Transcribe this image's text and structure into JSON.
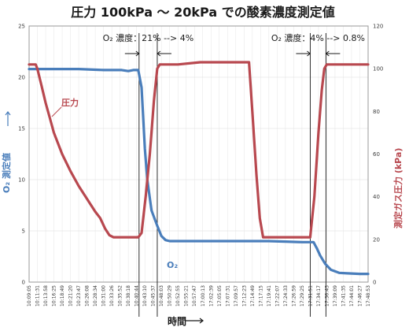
{
  "chart_data": {
    "type": "line",
    "title": "圧力 100kPa ～ 20kPa での酸素濃度測定値",
    "xlabel": "時間",
    "ylabel_left": "O₂ 測定値",
    "ylabel_right": "測定ガス圧力 (kPa)",
    "y_left_lim": [
      0,
      25
    ],
    "y_left_ticks": [
      "0",
      "5",
      "10",
      "15",
      "20",
      "25"
    ],
    "y_right_lim": [
      0,
      120
    ],
    "y_right_ticks": [
      "0",
      "20",
      "40",
      "60",
      "80",
      "100",
      "120"
    ],
    "grid": true,
    "x_ticks": [
      "10:09:05",
      "10:11:31",
      "10:13:58",
      "10:16:25",
      "10:18:49",
      "10:21:20",
      "10:23:47",
      "10:26:08",
      "10:28:34",
      "10:31:00",
      "10:33:26",
      "10:35:52",
      "10:38:18",
      "10:40:44",
      "10:43:10",
      "10:45:37",
      "10:48:03",
      "10:50:29",
      "10:52:55",
      "10:55:21",
      "10:57:47",
      "17:00:13",
      "17:02:39",
      "17:05:05",
      "17:07:31",
      "17:09:57",
      "17:12:23",
      "17:14:49",
      "17:17:15",
      "17:19:41",
      "17:22:07",
      "17:24:33",
      "17:26:59",
      "17:29:25",
      "17:31:51",
      "17:34:17",
      "17:36:43",
      "17:39:09",
      "17:41:35",
      "17:44:01",
      "17:46:27",
      "17:48:53"
    ],
    "series": [
      {
        "name": "O₂",
        "axis": "left",
        "color": "#4a7ebb",
        "points": [
          [
            0,
            20.8
          ],
          [
            3,
            20.8
          ],
          [
            6,
            20.8
          ],
          [
            9,
            20.7
          ],
          [
            10,
            20.7
          ],
          [
            11.2,
            20.7
          ],
          [
            12,
            20.6
          ],
          [
            12.6,
            20.7
          ],
          [
            13.2,
            20.7
          ],
          [
            13.6,
            19.0
          ],
          [
            14.0,
            13.0
          ],
          [
            14.3,
            10.0
          ],
          [
            14.8,
            7.0
          ],
          [
            15.5,
            5.5
          ],
          [
            16.0,
            4.5
          ],
          [
            16.5,
            4.1
          ],
          [
            17.0,
            4.0
          ],
          [
            20,
            4.0
          ],
          [
            25,
            4.0
          ],
          [
            29,
            4.0
          ],
          [
            31,
            3.95
          ],
          [
            33,
            3.9
          ],
          [
            34.4,
            3.9
          ],
          [
            34.8,
            3.3
          ],
          [
            35.2,
            2.6
          ],
          [
            35.8,
            1.8
          ],
          [
            36.5,
            1.2
          ],
          [
            37.5,
            0.9
          ],
          [
            38.5,
            0.85
          ],
          [
            40,
            0.8
          ],
          [
            41,
            0.8
          ]
        ]
      },
      {
        "name": "圧力",
        "axis": "right",
        "color": "#b8484f",
        "points": [
          [
            0,
            102
          ],
          [
            0.8,
            102
          ],
          [
            1.0,
            100
          ],
          [
            1.5,
            92
          ],
          [
            2,
            84
          ],
          [
            2.5,
            77
          ],
          [
            3,
            70
          ],
          [
            4,
            60
          ],
          [
            5,
            52
          ],
          [
            6,
            45
          ],
          [
            7,
            39
          ],
          [
            8,
            33
          ],
          [
            8.6,
            30
          ],
          [
            9.2,
            25
          ],
          [
            9.7,
            22
          ],
          [
            10.2,
            21
          ],
          [
            12,
            21
          ],
          [
            13.2,
            21
          ],
          [
            13.6,
            23
          ],
          [
            14.1,
            40
          ],
          [
            14.6,
            60
          ],
          [
            15.1,
            85
          ],
          [
            15.5,
            100
          ],
          [
            15.8,
            102
          ],
          [
            18,
            102
          ],
          [
            20.7,
            103
          ],
          [
            22,
            103
          ],
          [
            26.6,
            103
          ],
          [
            27.0,
            80
          ],
          [
            27.5,
            50
          ],
          [
            27.9,
            30
          ],
          [
            28.3,
            21
          ],
          [
            33,
            21
          ],
          [
            34.0,
            21
          ],
          [
            34.5,
            40
          ],
          [
            35.0,
            70
          ],
          [
            35.4,
            90
          ],
          [
            35.7,
            100
          ],
          [
            36.0,
            102
          ],
          [
            41,
            102
          ]
        ]
      }
    ],
    "annotations": [
      {
        "text": "O₂ 濃度：21% --> 4%",
        "x_from": 13.3,
        "x_to": 15.5
      },
      {
        "text": "O₂ 濃度：4% --> 0.8%",
        "x_from": 34.0,
        "x_to": 35.9
      }
    ],
    "series_labels": [
      {
        "text": "圧力",
        "series": "圧力"
      },
      {
        "text": "O₂",
        "series": "O₂"
      }
    ]
  }
}
